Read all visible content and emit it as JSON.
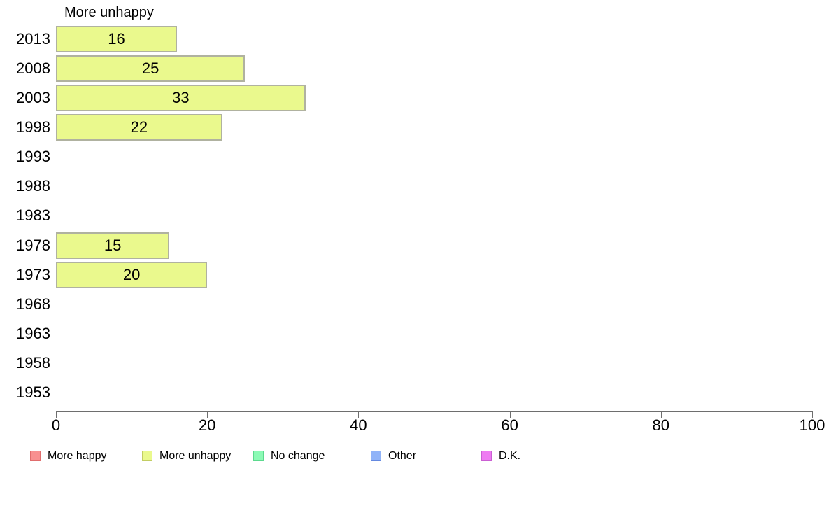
{
  "chart_data": {
    "type": "bar",
    "orientation": "horizontal",
    "title": "More unhappy",
    "categories": [
      "2013",
      "2008",
      "2003",
      "1998",
      "1993",
      "1988",
      "1983",
      "1978",
      "1973",
      "1968",
      "1963",
      "1958",
      "1953"
    ],
    "series": [
      {
        "name": "More unhappy",
        "fill_color": "#eaf98d",
        "border_color": "#b0b2a0",
        "values": [
          16,
          25,
          33,
          22,
          null,
          null,
          null,
          15,
          20,
          null,
          null,
          null,
          null
        ]
      }
    ],
    "xlim": [
      0,
      100
    ],
    "x_ticks": [
      0,
      20,
      40,
      60,
      80,
      100
    ],
    "grid": false,
    "legend_position": "bottom",
    "legend": [
      {
        "label": "More happy",
        "fill": "#f89090",
        "border": "#e06d6d"
      },
      {
        "label": "More unhappy",
        "fill": "#eaf98d",
        "border": "#c2cd63"
      },
      {
        "label": "No change",
        "fill": "#8cfab5",
        "border": "#5cd98e"
      },
      {
        "label": "Other",
        "fill": "#90b3f8",
        "border": "#6589e0"
      },
      {
        "label": "D.K.",
        "fill": "#ee7af2",
        "border": "#ca5fd3"
      }
    ]
  }
}
